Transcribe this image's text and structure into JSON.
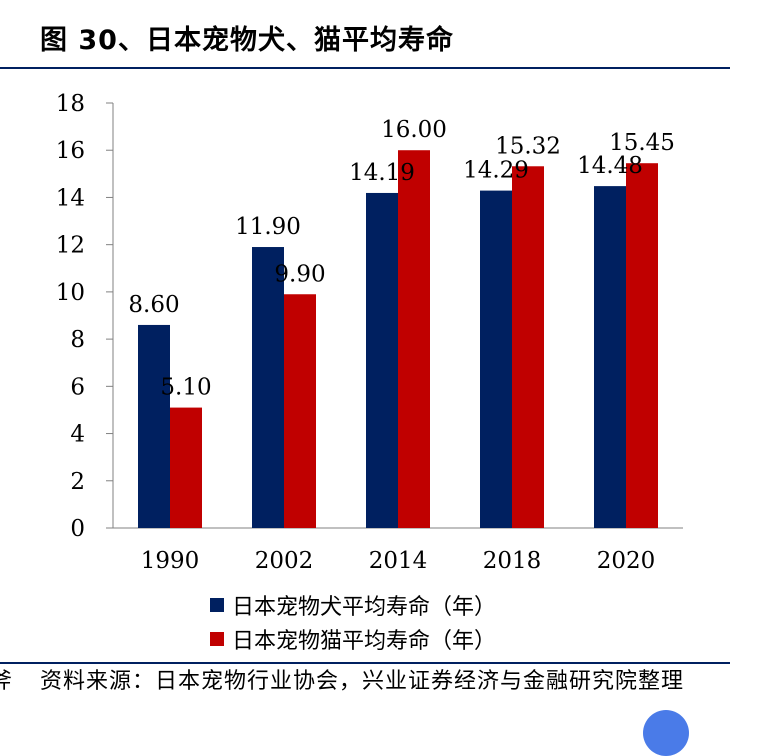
{
  "figure": {
    "title": "图 30、日本宠物犬、猫平均寿命",
    "source": "资料来源：日本宠物行业协会，兴业证券经济与金融研究院整理",
    "cut_glyph": "斧"
  },
  "colors": {
    "dog": "#002060",
    "cat": "#C00000",
    "rule": "#002060",
    "axis": "#808080",
    "fab": "#4a7be8"
  },
  "chart_data": {
    "type": "bar",
    "categories": [
      "1990",
      "2002",
      "2014",
      "2018",
      "2020"
    ],
    "series": [
      {
        "name": "日本宠物犬平均寿命（年）",
        "values": [
          8.6,
          11.9,
          14.19,
          14.29,
          14.48
        ],
        "labels": [
          "8.60",
          "11.90",
          "14.19",
          "14.29",
          "14.48"
        ]
      },
      {
        "name": "日本宠物猫平均寿命（年）",
        "values": [
          5.1,
          9.9,
          16.0,
          15.32,
          15.45
        ],
        "labels": [
          "5.10",
          "9.90",
          "16.00",
          "15.32",
          "15.45"
        ]
      }
    ],
    "ylim": [
      0,
      18
    ],
    "yticks": [
      "0",
      "2",
      "4",
      "6",
      "8",
      "10",
      "12",
      "14",
      "16",
      "18"
    ],
    "xlabel": "",
    "ylabel": "",
    "grid": false,
    "legend": "bottom"
  }
}
